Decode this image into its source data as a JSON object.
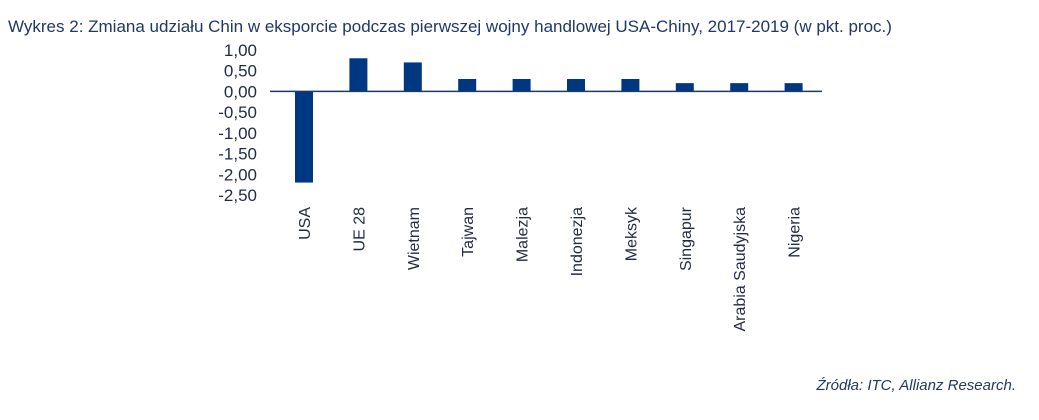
{
  "chart_data": {
    "type": "bar",
    "title": "Wykres 2: Zmiana udziału Chin w eksporcie podczas pierwszej wojny handlowej USA-Chiny, 2017-2019 (w pkt. proc.)",
    "categories": [
      "USA",
      "UE 28",
      "Wietnam",
      "Tajwan",
      "Malezja",
      "Indonezja",
      "Meksyk",
      "Singapur",
      "Arabia Saudyjska",
      "Nigeria"
    ],
    "values": [
      -2.2,
      0.8,
      0.7,
      0.3,
      0.3,
      0.3,
      0.3,
      0.2,
      0.2,
      0.2
    ],
    "ylim": [
      -2.5,
      1.0
    ],
    "yticks": [
      1.0,
      0.5,
      0.0,
      -0.5,
      -1.0,
      -1.5,
      -2.0,
      -2.5
    ],
    "ytick_labels": [
      "1,00",
      "0,50",
      "0,00",
      "-0,50",
      "-1,00",
      "-1,50",
      "-2,00",
      "-2,50"
    ],
    "xlabel": "",
    "ylabel": "",
    "grid": false,
    "bar_color": "#003781",
    "source": "Źródła: ITC, Allianz Research."
  }
}
